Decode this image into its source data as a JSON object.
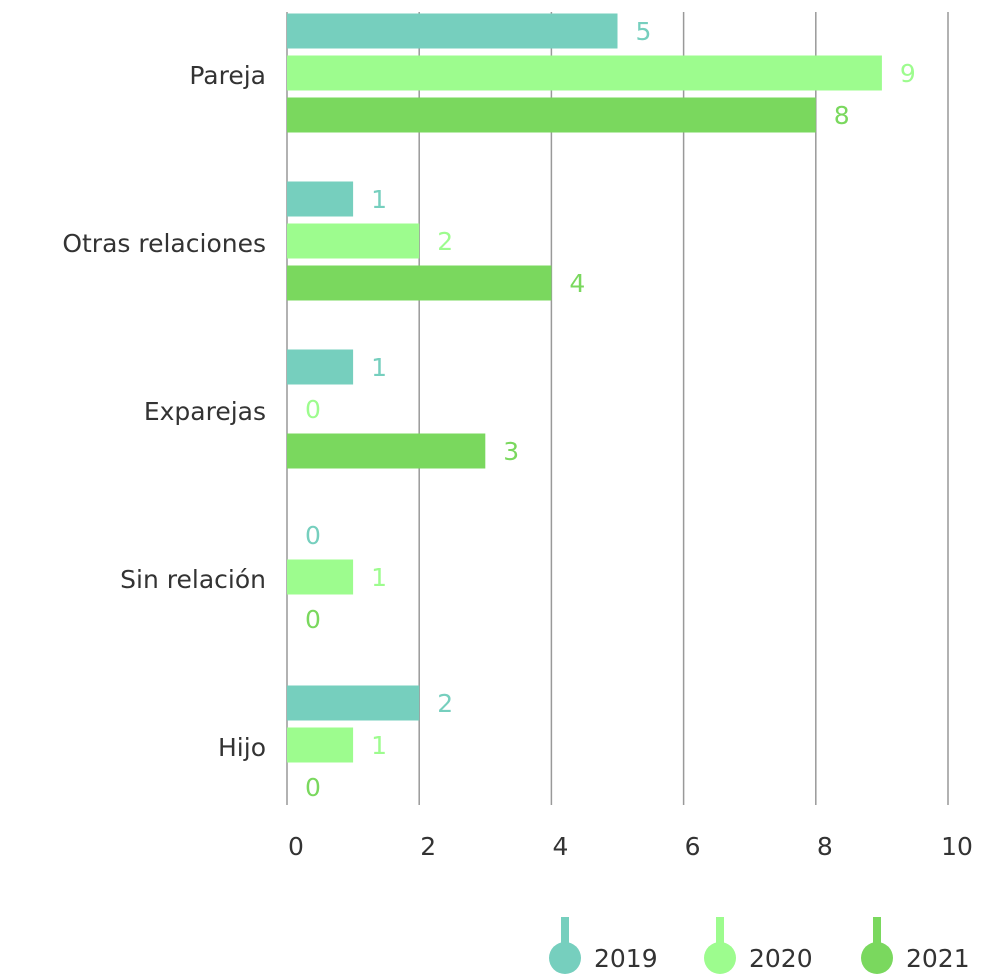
{
  "chart_data": {
    "type": "bar",
    "orientation": "horizontal",
    "categories": [
      "Pareja",
      "Otras relaciones",
      "Exparejas",
      "Sin relación",
      "Hijo"
    ],
    "series": [
      {
        "name": "2019",
        "color": "#76cfbe",
        "values": [
          5,
          1,
          1,
          0,
          2
        ]
      },
      {
        "name": "2020",
        "color": "#9dfc8e",
        "values": [
          9,
          2,
          0,
          1,
          1
        ]
      },
      {
        "name": "2021",
        "color": "#7ad85e",
        "values": [
          8,
          4,
          3,
          0,
          0
        ]
      }
    ],
    "xlim": [
      0,
      10
    ],
    "xticks": [
      0,
      2,
      4,
      6,
      8,
      10
    ],
    "grid": true,
    "legend": "bottom-right"
  }
}
